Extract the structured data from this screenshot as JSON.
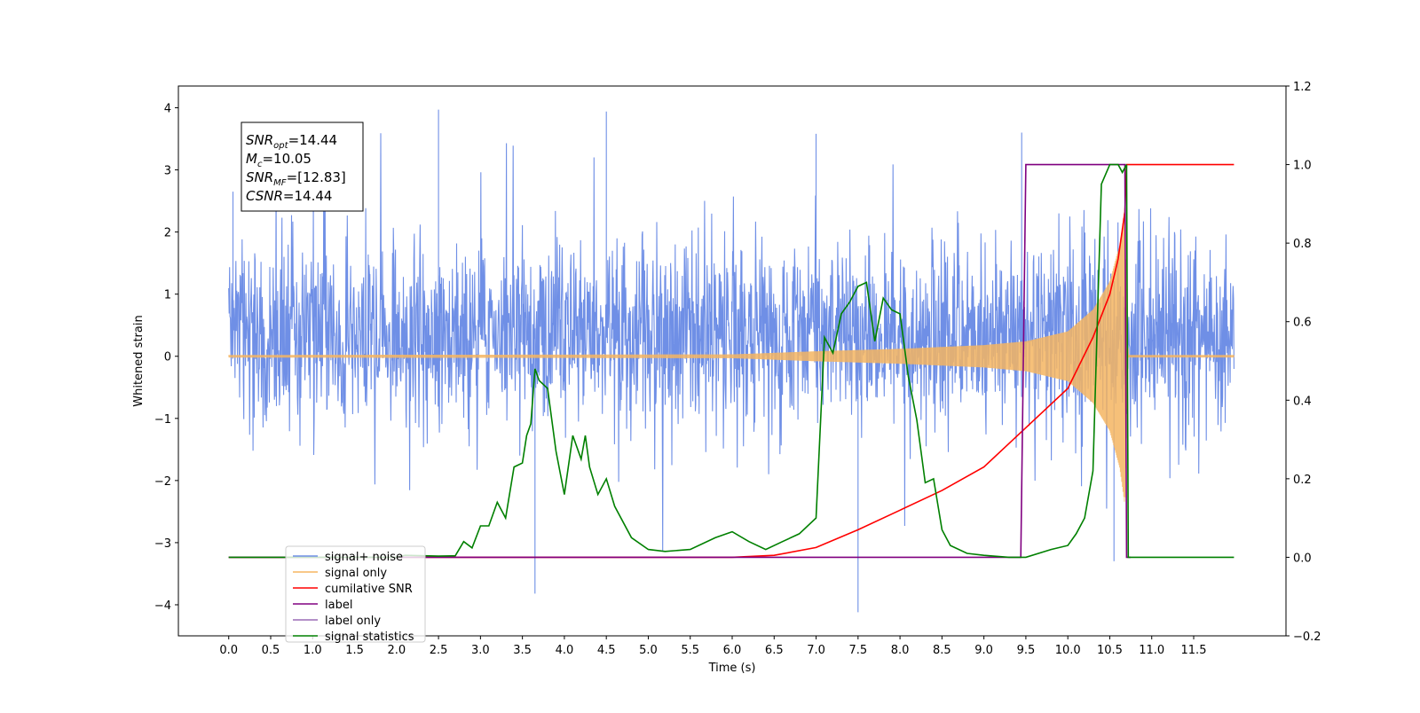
{
  "chart_data": {
    "type": "line",
    "xlabel": "Time (s)",
    "ylabel_left": "Whitened strain",
    "ylabel_right": "",
    "xlim": [
      -0.6,
      12.6
    ],
    "ylim_left": [
      -4.5,
      4.35
    ],
    "ylim_right": [
      -0.2,
      1.2
    ],
    "x_ticks": [
      "0.0",
      "0.5",
      "1.0",
      "1.5",
      "2.0",
      "2.5",
      "3.0",
      "3.5",
      "4.0",
      "4.5",
      "5.0",
      "5.5",
      "6.0",
      "6.5",
      "7.0",
      "7.5",
      "8.0",
      "8.5",
      "9.0",
      "9.5",
      "10.0",
      "10.5",
      "11.0",
      "11.5"
    ],
    "y_ticks_left": [
      "4",
      "3",
      "2",
      "1",
      "0",
      "−1",
      "−2",
      "−3",
      "−4"
    ],
    "y_ticks_right": [
      "1.2",
      "1.0",
      "0.8",
      "0.6",
      "0.4",
      "0.2",
      "0.0",
      "−0.2"
    ],
    "grid": false,
    "legend_position": "lower-left",
    "annotations": [
      {
        "base": "SNR",
        "sub": "opt",
        "rest": "=14.44"
      },
      {
        "base": "M",
        "sub": "c",
        "rest": "=10.05"
      },
      {
        "base": "SNR",
        "sub": "MF",
        "rest": "=[12.83]"
      },
      {
        "base": "CSNR",
        "sub": "",
        "rest": "=14.44"
      }
    ],
    "series": [
      {
        "name": "signal+ noise",
        "axis": "left",
        "color": "#6f8fe6",
        "kind": "noise",
        "x_range": [
          0.0,
          11.98
        ],
        "amplitude_approx": [
          -3.0,
          3.5
        ],
        "peak_points": [
          [
            0.05,
            2.65
          ],
          [
            2.5,
            3.97
          ],
          [
            4.5,
            3.94
          ],
          [
            7.0,
            3.58
          ],
          [
            9.45,
            3.6
          ],
          [
            7.5,
            -4.12
          ],
          [
            3.65,
            -3.82
          ],
          [
            10.55,
            -3.3
          ]
        ]
      },
      {
        "name": "signal only",
        "axis": "left",
        "color": "#f5b561",
        "kind": "chirp",
        "x_range": [
          0.0,
          11.98
        ],
        "merger_time": 10.68,
        "envelope": [
          [
            0.0,
            0.02
          ],
          [
            6.0,
            0.03
          ],
          [
            7.0,
            0.08
          ],
          [
            8.0,
            0.12
          ],
          [
            9.0,
            0.18
          ],
          [
            9.5,
            0.24
          ],
          [
            10.0,
            0.4
          ],
          [
            10.3,
            0.75
          ],
          [
            10.5,
            1.2
          ],
          [
            10.62,
            1.8
          ],
          [
            10.68,
            2.4
          ],
          [
            10.72,
            0.02
          ],
          [
            11.98,
            0.02
          ]
        ]
      },
      {
        "name": "cumilative SNR",
        "axis": "right",
        "color": "#ff0000",
        "points": [
          [
            0.0,
            0.0
          ],
          [
            6.0,
            0.0
          ],
          [
            6.5,
            0.005
          ],
          [
            7.0,
            0.025
          ],
          [
            7.5,
            0.07
          ],
          [
            8.0,
            0.12
          ],
          [
            8.5,
            0.17
          ],
          [
            9.0,
            0.23
          ],
          [
            9.5,
            0.33
          ],
          [
            10.0,
            0.43
          ],
          [
            10.3,
            0.56
          ],
          [
            10.5,
            0.67
          ],
          [
            10.6,
            0.76
          ],
          [
            10.68,
            0.88
          ],
          [
            10.7,
            1.0
          ],
          [
            11.98,
            1.0
          ]
        ]
      },
      {
        "name": "label",
        "axis": "right",
        "color": "#800080",
        "points": [
          [
            0.0,
            0.0
          ],
          [
            9.44,
            0.0
          ],
          [
            9.5,
            1.0
          ],
          [
            10.68,
            1.0
          ],
          [
            10.7,
            0.0
          ],
          [
            10.75,
            0.0
          ]
        ]
      },
      {
        "name": "signal statistics",
        "axis": "right",
        "color": "#008000",
        "points": [
          [
            0.0,
            0.0
          ],
          [
            2.0,
            0.0
          ],
          [
            2.1,
            0.005
          ],
          [
            2.5,
            0.003
          ],
          [
            2.7,
            0.004
          ],
          [
            2.8,
            0.04
          ],
          [
            2.9,
            0.024
          ],
          [
            3.0,
            0.08
          ],
          [
            3.1,
            0.08
          ],
          [
            3.2,
            0.14
          ],
          [
            3.3,
            0.1
          ],
          [
            3.4,
            0.23
          ],
          [
            3.5,
            0.24
          ],
          [
            3.55,
            0.31
          ],
          [
            3.6,
            0.34
          ],
          [
            3.65,
            0.48
          ],
          [
            3.7,
            0.45
          ],
          [
            3.8,
            0.43
          ],
          [
            3.9,
            0.27
          ],
          [
            4.0,
            0.16
          ],
          [
            4.1,
            0.31
          ],
          [
            4.2,
            0.25
          ],
          [
            4.25,
            0.31
          ],
          [
            4.3,
            0.23
          ],
          [
            4.4,
            0.16
          ],
          [
            4.5,
            0.2
          ],
          [
            4.6,
            0.13
          ],
          [
            4.8,
            0.05
          ],
          [
            5.0,
            0.02
          ],
          [
            5.2,
            0.015
          ],
          [
            5.5,
            0.02
          ],
          [
            5.8,
            0.05
          ],
          [
            6.0,
            0.065
          ],
          [
            6.2,
            0.04
          ],
          [
            6.4,
            0.02
          ],
          [
            6.6,
            0.04
          ],
          [
            6.8,
            0.06
          ],
          [
            7.0,
            0.1
          ],
          [
            7.1,
            0.56
          ],
          [
            7.2,
            0.52
          ],
          [
            7.3,
            0.62
          ],
          [
            7.4,
            0.65
          ],
          [
            7.5,
            0.69
          ],
          [
            7.6,
            0.7
          ],
          [
            7.7,
            0.55
          ],
          [
            7.8,
            0.66
          ],
          [
            7.9,
            0.63
          ],
          [
            8.0,
            0.62
          ],
          [
            8.1,
            0.46
          ],
          [
            8.2,
            0.35
          ],
          [
            8.3,
            0.19
          ],
          [
            8.4,
            0.2
          ],
          [
            8.5,
            0.07
          ],
          [
            8.6,
            0.03
          ],
          [
            8.8,
            0.01
          ],
          [
            9.0,
            0.005
          ],
          [
            9.3,
            0.0
          ],
          [
            9.5,
            0.0
          ],
          [
            9.8,
            0.02
          ],
          [
            10.0,
            0.03
          ],
          [
            10.1,
            0.06
          ],
          [
            10.2,
            0.1
          ],
          [
            10.3,
            0.22
          ],
          [
            10.4,
            0.95
          ],
          [
            10.5,
            1.0
          ],
          [
            10.6,
            1.0
          ],
          [
            10.65,
            0.98
          ],
          [
            10.7,
            1.0
          ],
          [
            10.72,
            0.0
          ],
          [
            11.98,
            0.0
          ]
        ]
      }
    ],
    "legend": [
      {
        "label": "signal+ noise",
        "color": "#6f8fe6"
      },
      {
        "label": "signal only",
        "color": "#f5b561"
      },
      {
        "label": "cumilative SNR",
        "color": "#ff0000"
      },
      {
        "label": "label",
        "color": "#800080"
      },
      {
        "label": "label only",
        "color": "#9b6bb5"
      },
      {
        "label": "signal statistics",
        "color": "#008000"
      }
    ]
  }
}
